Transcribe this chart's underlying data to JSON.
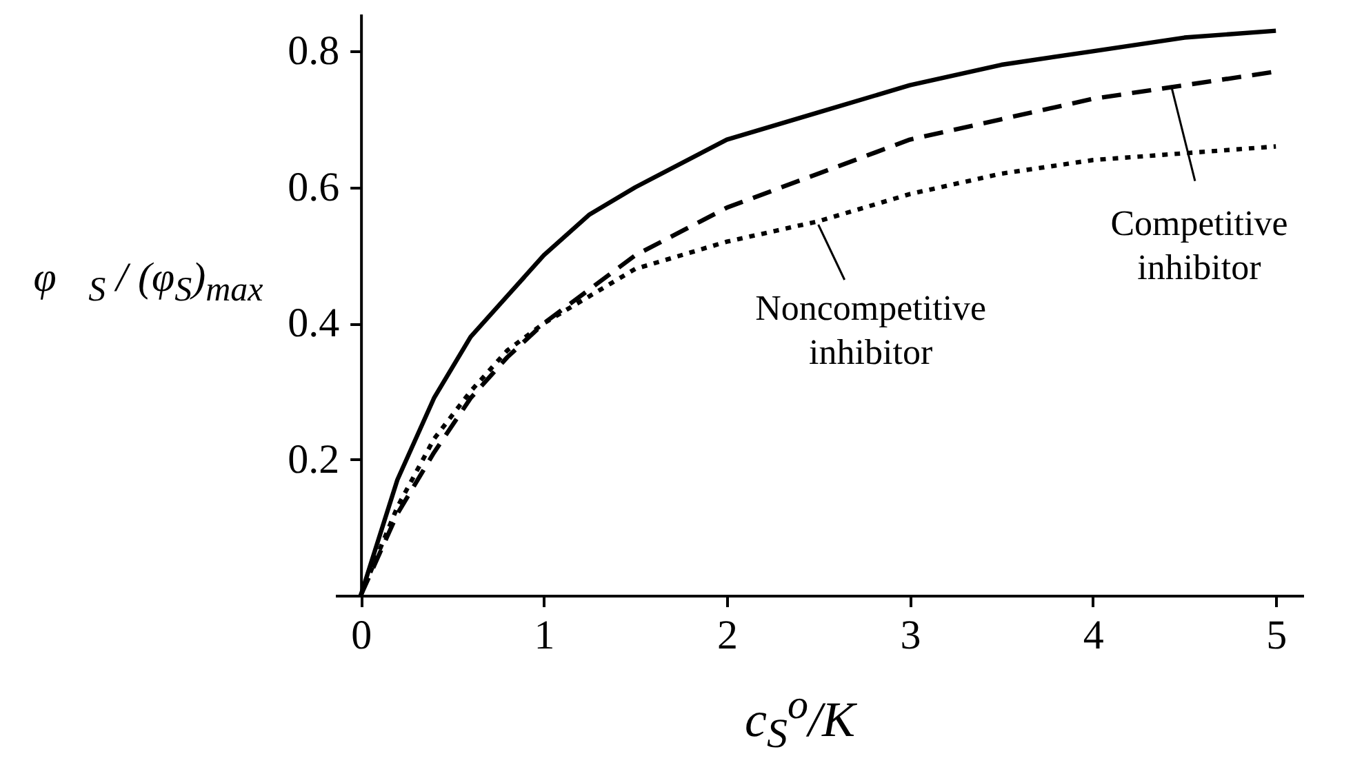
{
  "chart_data": {
    "type": "line",
    "xlabel": "c$_{S}$$^{o}$/K",
    "ylabel": "φ⃖$_{S}$ / (φ$_{S}$)$_{max}$",
    "x": [
      0,
      0.2,
      0.4,
      0.6,
      0.8,
      1,
      1.25,
      1.5,
      2,
      2.5,
      3,
      3.5,
      4,
      4.5,
      5
    ],
    "series": [
      {
        "color": "#000000",
        "line_style": "solid",
        "values": [
          0,
          0.17,
          0.29,
          0.38,
          0.44,
          0.5,
          0.56,
          0.6,
          0.67,
          0.71,
          0.75,
          0.78,
          0.8,
          0.82,
          0.83
        ]
      },
      {
        "color": "#000000",
        "line_style": "dashed",
        "values": [
          0,
          0.12,
          0.21,
          0.29,
          0.35,
          0.4,
          0.45,
          0.5,
          0.57,
          0.62,
          0.67,
          0.7,
          0.73,
          0.75,
          0.77
        ]
      },
      {
        "color": "#000000",
        "line_style": "dotted",
        "values": [
          0,
          0.13,
          0.23,
          0.3,
          0.36,
          0.4,
          0.44,
          0.48,
          0.52,
          0.55,
          0.59,
          0.62,
          0.64,
          0.65,
          0.66
        ]
      }
    ],
    "xlim": [
      -0.14,
      5.15
    ],
    "ylim": [
      0,
      0.855
    ],
    "xticks": [
      0,
      1,
      2,
      3,
      4,
      5
    ],
    "yticks": [
      0.2,
      0.4,
      0.6,
      0.8
    ],
    "grid": false,
    "marker": "none",
    "annotations": [
      {
        "text": "Competitive inhibitor",
        "x": 4.43,
        "y": 0.747
      },
      {
        "text": "Noncompetitive inhibitor",
        "x": 2.5,
        "y": 0.545
      }
    ]
  }
}
